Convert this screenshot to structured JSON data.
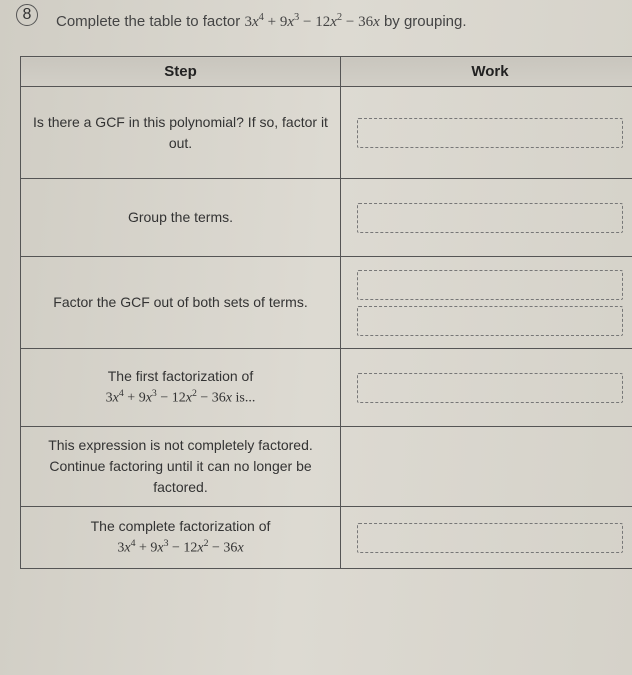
{
  "problem": {
    "number": "8",
    "instruction_prefix": "Complete the table to factor ",
    "polynomial_html": "3<span class='math'>x</span><span class='sup'>4</span> + 9<span class='math'>x</span><span class='sup'>3</span> − 12<span class='math'>x</span><span class='sup'>2</span> − 36<span class='math'>x</span>",
    "instruction_suffix": " by grouping."
  },
  "table": {
    "headers": {
      "step": "Step",
      "work": "Work"
    },
    "rows": [
      {
        "step_text": "Is there a GCF in this polynomial? If so, factor it out.",
        "work_style": "single",
        "height": "row-tall"
      },
      {
        "step_text": "Group the terms.",
        "work_style": "single",
        "height": "row-med"
      },
      {
        "step_text": "Factor the GCF out of both sets of terms.",
        "work_style": "double",
        "height": "row-tall"
      },
      {
        "step_text_prefix": "The first factorization of",
        "step_poly": true,
        "step_text_suffix": " is...",
        "work_style": "single",
        "height": "row-med"
      },
      {
        "step_text": "This expression is not completely factored. Continue factoring until it can no longer be factored.",
        "work_style": "none",
        "height": "row-med"
      },
      {
        "step_text_prefix": "The complete factorization of",
        "step_poly": true,
        "step_text_suffix": "",
        "work_style": "single",
        "height": "row-short"
      }
    ]
  },
  "style": {
    "background": "#d8d5cd",
    "border_color": "#555",
    "dash_color": "#777",
    "text_color": "#333",
    "header_bg": "#c9c6be",
    "font_body": "Arial",
    "font_math": "Times New Roman"
  }
}
